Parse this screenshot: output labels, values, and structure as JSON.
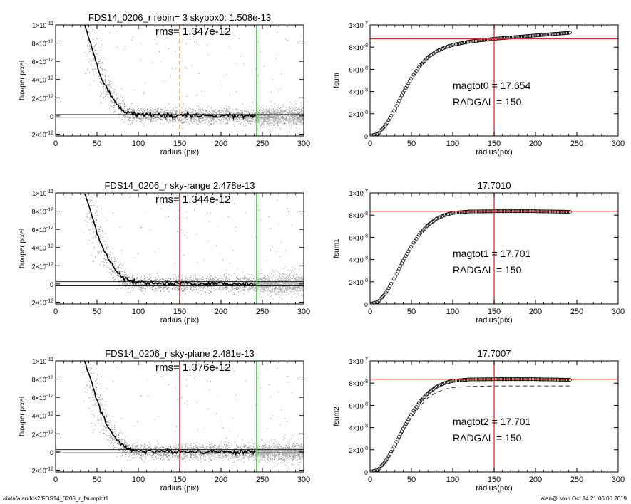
{
  "footer": {
    "left": "/data/alan/fds2/FDS14_0206_r_fsumplot1",
    "right": "alan@  Mon Oct 14 21:06:00 2019"
  },
  "colors": {
    "axis": "#000000",
    "points": "#8a8a8a",
    "profile": "#000000",
    "red_line": "#d23030",
    "green_line": "#3ad23a",
    "orange_line": "#f0a050",
    "markers": "#000000"
  },
  "chart_data": [
    {
      "type": "scatter",
      "title": "FDS14_0206_r rebin= 3    skybox0:  1.508e-13",
      "annotation": "rms= 1.347e-12",
      "xlabel": "radius (pix)",
      "ylabel": "flux/per pixel",
      "xlim": [
        0,
        300
      ],
      "ylim": [
        -2.2e-12,
        1e-11
      ],
      "xticks": [
        "0",
        "50",
        "100",
        "150",
        "200",
        "250",
        "300"
      ],
      "yticks": [
        {
          "value": 1e-11,
          "mant": "1×10",
          "exp": "-11"
        },
        {
          "value": 8e-12,
          "mant": "8×10",
          "exp": "-12"
        },
        {
          "value": 6e-12,
          "mant": "6×10",
          "exp": "-12"
        },
        {
          "value": 4e-12,
          "mant": "4×10",
          "exp": "-12"
        },
        {
          "value": 2e-12,
          "mant": "2×10",
          "exp": "-12"
        },
        {
          "value": 0,
          "mant": "0",
          "exp": ""
        },
        {
          "value": -2e-12,
          "mant": "-2×10",
          "exp": "-12"
        }
      ],
      "profile": {
        "x": [
          35,
          40,
          45,
          50,
          55,
          60,
          65,
          70,
          75,
          80,
          90,
          100,
          120,
          150,
          200,
          243
        ],
        "y": [
          1e-11,
          8.6e-12,
          7.2e-12,
          5.6e-12,
          4.3e-12,
          3.4e-12,
          2.6e-12,
          1.8e-12,
          1.2e-12,
          7.5e-13,
          3e-13,
          1.2e-13,
          6e-14,
          3e-14,
          2e-14,
          1e-14
        ]
      },
      "sky_lines": [
        1.508e-13,
        -1.5e-13
      ],
      "vlines": [
        {
          "x": 150,
          "color": "orange",
          "dashed": true
        },
        {
          "x": 243,
          "color": "green",
          "dashed": false
        }
      ],
      "scatter_note": "dense grey pixel cloud"
    },
    {
      "type": "line",
      "title": "",
      "xlabel": "radius(pix)",
      "ylabel": "fsum",
      "xlim": [
        0,
        300
      ],
      "ylim": [
        0,
        1e-07
      ],
      "xticks": [
        "0",
        "50",
        "100",
        "150",
        "200",
        "250",
        "300"
      ],
      "yticks": [
        {
          "value": 1e-07,
          "mant": "1×10",
          "exp": "-7"
        },
        {
          "value": 8e-08,
          "mant": "8×10",
          "exp": "-8"
        },
        {
          "value": 6e-08,
          "mant": "6×10",
          "exp": "-8"
        },
        {
          "value": 4e-08,
          "mant": "4×10",
          "exp": "-8"
        },
        {
          "value": 2e-08,
          "mant": "2×10",
          "exp": "-8"
        },
        {
          "value": 0,
          "mant": "0",
          "exp": ""
        }
      ],
      "growth": {
        "x": [
          0,
          10,
          20,
          30,
          40,
          50,
          60,
          70,
          80,
          90,
          100,
          120,
          150,
          200,
          243
        ],
        "y": [
          0,
          2e-09,
          1.1e-08,
          2.4e-08,
          3.9e-08,
          5.2e-08,
          6.3e-08,
          7.1e-08,
          7.6e-08,
          7.95e-08,
          8.2e-08,
          8.5e-08,
          8.75e-08,
          9.05e-08,
          9.3e-08
        ]
      },
      "hline": 8.75e-08,
      "vline": 150,
      "text": [
        "magtot0 = 17.654",
        "RADGAL =    150."
      ]
    },
    {
      "type": "scatter",
      "title": "FDS14_0206_r sky-range  2.478e-13",
      "annotation": "rms= 1.344e-12",
      "xlabel": "radius (pix)",
      "ylabel": "flux/per pixel",
      "xlim": [
        0,
        300
      ],
      "ylim": [
        -2.2e-12,
        1e-11
      ],
      "xticks": [
        "0",
        "50",
        "100",
        "150",
        "200",
        "250",
        "300"
      ],
      "yticks": [
        {
          "value": 1e-11,
          "mant": "1×10",
          "exp": "-11"
        },
        {
          "value": 8e-12,
          "mant": "8×10",
          "exp": "-12"
        },
        {
          "value": 6e-12,
          "mant": "6×10",
          "exp": "-12"
        },
        {
          "value": 4e-12,
          "mant": "4×10",
          "exp": "-12"
        },
        {
          "value": 2e-12,
          "mant": "2×10",
          "exp": "-12"
        },
        {
          "value": 0,
          "mant": "0",
          "exp": ""
        },
        {
          "value": -2e-12,
          "mant": "-2×10",
          "exp": "-12"
        }
      ],
      "profile": {
        "x": [
          35,
          40,
          45,
          50,
          55,
          60,
          65,
          70,
          75,
          80,
          90,
          100,
          120,
          150,
          200,
          243
        ],
        "y": [
          1e-11,
          8.6e-12,
          7.2e-12,
          5.6e-12,
          4.3e-12,
          3.4e-12,
          2.6e-12,
          1.8e-12,
          1.2e-12,
          7.5e-13,
          3e-13,
          1.2e-13,
          6e-14,
          3e-14,
          2e-14,
          1e-14
        ]
      },
      "sky_lines": [
        2.478e-13,
        -2e-13
      ],
      "vlines": [
        {
          "x": 150,
          "color": "red",
          "dashed": false
        },
        {
          "x": 243,
          "color": "green",
          "dashed": false
        }
      ],
      "scatter_note": "dense grey pixel cloud"
    },
    {
      "type": "line",
      "title": "17.7010",
      "xlabel": "radius(pix)",
      "ylabel": "fsum1",
      "xlim": [
        0,
        300
      ],
      "ylim": [
        0,
        1e-07
      ],
      "xticks": [
        "0",
        "50",
        "100",
        "150",
        "200",
        "250",
        "300"
      ],
      "yticks": [
        {
          "value": 1e-07,
          "mant": "1×10",
          "exp": "-7"
        },
        {
          "value": 8e-08,
          "mant": "8×10",
          "exp": "-8"
        },
        {
          "value": 6e-08,
          "mant": "6×10",
          "exp": "-8"
        },
        {
          "value": 4e-08,
          "mant": "4×10",
          "exp": "-8"
        },
        {
          "value": 2e-08,
          "mant": "2×10",
          "exp": "-8"
        },
        {
          "value": 0,
          "mant": "0",
          "exp": ""
        }
      ],
      "growth": {
        "x": [
          0,
          10,
          20,
          30,
          40,
          50,
          60,
          70,
          80,
          90,
          100,
          120,
          150,
          200,
          243
        ],
        "y": [
          0,
          2e-09,
          1.1e-08,
          2.4e-08,
          3.9e-08,
          5.2e-08,
          6.3e-08,
          7.1e-08,
          7.65e-08,
          8e-08,
          8.2e-08,
          8.33e-08,
          8.35e-08,
          8.35e-08,
          8.3e-08
        ]
      },
      "hline": 8.35e-08,
      "vline": 150,
      "text": [
        "magtot1 = 17.701",
        "RADGAL =    150."
      ]
    },
    {
      "type": "scatter",
      "title": "FDS14_0206_r sky-plane  2.481e-13",
      "annotation": "rms= 1.376e-12",
      "xlabel": "radius (pix)",
      "ylabel": "flux/per pixel",
      "xlim": [
        0,
        300
      ],
      "ylim": [
        -2.2e-12,
        1e-11
      ],
      "xticks": [
        "0",
        "50",
        "100",
        "150",
        "200",
        "250",
        "300"
      ],
      "yticks": [
        {
          "value": 1e-11,
          "mant": "1×10",
          "exp": "-11"
        },
        {
          "value": 8e-12,
          "mant": "8×10",
          "exp": "-12"
        },
        {
          "value": 6e-12,
          "mant": "6×10",
          "exp": "-12"
        },
        {
          "value": 4e-12,
          "mant": "4×10",
          "exp": "-12"
        },
        {
          "value": 2e-12,
          "mant": "2×10",
          "exp": "-12"
        },
        {
          "value": 0,
          "mant": "0",
          "exp": ""
        },
        {
          "value": -2e-12,
          "mant": "-2×10",
          "exp": "-12"
        }
      ],
      "profile": {
        "x": [
          35,
          40,
          45,
          50,
          55,
          60,
          65,
          70,
          75,
          80,
          90,
          100,
          120,
          150,
          200,
          243
        ],
        "y": [
          1e-11,
          8.6e-12,
          7.2e-12,
          5.6e-12,
          4.3e-12,
          3.4e-12,
          2.6e-12,
          1.8e-12,
          1.2e-12,
          7.5e-13,
          3e-13,
          1.2e-13,
          6e-14,
          3e-14,
          2e-14,
          1e-14
        ]
      },
      "sky_lines": [
        2.481e-13,
        -1e-13
      ],
      "vlines": [
        {
          "x": 150,
          "color": "red",
          "dashed": false
        },
        {
          "x": 243,
          "color": "green",
          "dashed": false
        }
      ],
      "scatter_note": "dense grey pixel cloud"
    },
    {
      "type": "line",
      "title": "17.7007",
      "xlabel": "radius(pix)",
      "ylabel": "fsum2",
      "xlim": [
        0,
        300
      ],
      "ylim": [
        0,
        1e-07
      ],
      "xticks": [
        "0",
        "50",
        "100",
        "150",
        "200",
        "250",
        "300"
      ],
      "yticks": [
        {
          "value": 1e-07,
          "mant": "1×10",
          "exp": "-7"
        },
        {
          "value": 8e-08,
          "mant": "8×10",
          "exp": "-8"
        },
        {
          "value": 6e-08,
          "mant": "6×10",
          "exp": "-8"
        },
        {
          "value": 4e-08,
          "mant": "4×10",
          "exp": "-8"
        },
        {
          "value": 2e-08,
          "mant": "2×10",
          "exp": "-8"
        },
        {
          "value": 0,
          "mant": "0",
          "exp": ""
        }
      ],
      "growth": {
        "x": [
          0,
          10,
          20,
          30,
          40,
          50,
          60,
          70,
          80,
          90,
          100,
          120,
          150,
          200,
          243
        ],
        "y": [
          0,
          2e-09,
          1.1e-08,
          2.4e-08,
          3.9e-08,
          5.2e-08,
          6.3e-08,
          7.1e-08,
          7.65e-08,
          8e-08,
          8.2e-08,
          8.33e-08,
          8.35e-08,
          8.35e-08,
          8.3e-08
        ]
      },
      "dashed_curve": {
        "x": [
          10,
          20,
          30,
          40,
          50,
          60,
          70,
          80,
          90,
          100,
          120,
          150,
          200,
          243
        ],
        "y": [
          2e-09,
          1e-08,
          2.2e-08,
          3.6e-08,
          4.9e-08,
          5.9e-08,
          6.7e-08,
          7.15e-08,
          7.45e-08,
          7.6e-08,
          7.7e-08,
          7.75e-08,
          7.75e-08,
          7.75e-08
        ]
      },
      "hline": 8.35e-08,
      "vline": 150,
      "text": [
        "magtot2 = 17.701",
        "RADGAL =    150."
      ]
    }
  ]
}
